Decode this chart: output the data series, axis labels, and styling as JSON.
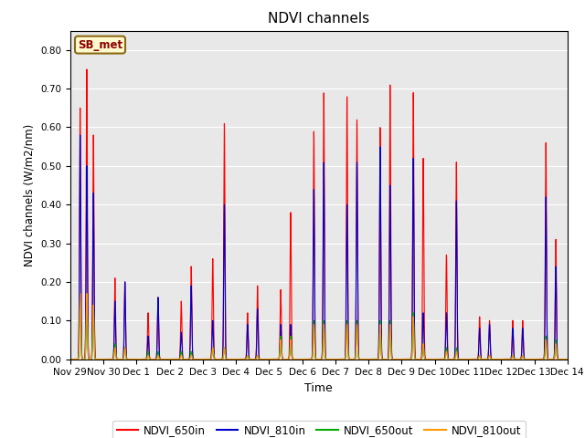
{
  "title": "NDVI channels",
  "xlabel": "Time",
  "ylabel": "NDVI channels (W/m2/nm)",
  "ylim": [
    0.0,
    0.85
  ],
  "yticks": [
    0.0,
    0.1,
    0.2,
    0.3,
    0.4,
    0.5,
    0.6,
    0.7,
    0.8
  ],
  "annotation_text": "SB_met",
  "annotation_color": "#8B0000",
  "annotation_bg": "#FFFACD",
  "annotation_border": "#8B6914",
  "colors": {
    "NDVI_650in": "#FF0000",
    "NDVI_810in": "#0000CC",
    "NDVI_650out": "#00AA00",
    "NDVI_810out": "#FF9900"
  },
  "background_color": "#E8E8E8",
  "xtick_labels": [
    "Nov 29",
    "Nov 30",
    "Dec 1",
    "Dec 2",
    "Dec 3",
    "Dec 4",
    "Dec 5",
    "Dec 6",
    "Dec 7",
    "Dec 8",
    "Dec 9",
    "Dec 10",
    "Dec 11",
    "Dec 12",
    "Dec 13",
    "Dec 14"
  ],
  "xtick_positions": [
    0,
    1,
    2,
    3,
    4,
    5,
    6,
    7,
    8,
    9,
    10,
    11,
    12,
    13,
    14,
    15
  ],
  "spike_data": [
    [
      0,
      0.3,
      0.65,
      0.58,
      0.15,
      0.17
    ],
    [
      0,
      0.5,
      0.75,
      0.5,
      0.16,
      0.17
    ],
    [
      0,
      0.7,
      0.58,
      0.43,
      0.13,
      0.14
    ],
    [
      1,
      0.35,
      0.21,
      0.15,
      0.04,
      0.03
    ],
    [
      1,
      0.65,
      0.2,
      0.2,
      0.03,
      0.03
    ],
    [
      2,
      0.35,
      0.12,
      0.06,
      0.02,
      0.01
    ],
    [
      2,
      0.65,
      0.16,
      0.16,
      0.02,
      0.01
    ],
    [
      3,
      0.35,
      0.15,
      0.07,
      0.02,
      0.01
    ],
    [
      3,
      0.65,
      0.24,
      0.19,
      0.02,
      0.01
    ],
    [
      4,
      0.3,
      0.26,
      0.1,
      0.03,
      0.03
    ],
    [
      4,
      0.65,
      0.61,
      0.4,
      0.03,
      0.03
    ],
    [
      5,
      0.35,
      0.12,
      0.09,
      0.01,
      0.01
    ],
    [
      5,
      0.65,
      0.19,
      0.13,
      0.01,
      0.01
    ],
    [
      6,
      0.35,
      0.18,
      0.09,
      0.06,
      0.05
    ],
    [
      6,
      0.65,
      0.38,
      0.09,
      0.06,
      0.05
    ],
    [
      7,
      0.35,
      0.59,
      0.44,
      0.1,
      0.09
    ],
    [
      7,
      0.65,
      0.69,
      0.51,
      0.1,
      0.09
    ],
    [
      8,
      0.35,
      0.68,
      0.4,
      0.1,
      0.09
    ],
    [
      8,
      0.65,
      0.62,
      0.51,
      0.1,
      0.09
    ],
    [
      9,
      0.35,
      0.6,
      0.55,
      0.1,
      0.09
    ],
    [
      9,
      0.65,
      0.71,
      0.45,
      0.1,
      0.09
    ],
    [
      10,
      0.35,
      0.69,
      0.52,
      0.12,
      0.11
    ],
    [
      10,
      0.65,
      0.52,
      0.12,
      0.04,
      0.04
    ],
    [
      11,
      0.35,
      0.27,
      0.12,
      0.03,
      0.02
    ],
    [
      11,
      0.65,
      0.51,
      0.41,
      0.03,
      0.02
    ],
    [
      12,
      0.35,
      0.11,
      0.08,
      0.01,
      0.01
    ],
    [
      12,
      0.65,
      0.1,
      0.09,
      0.01,
      0.01
    ],
    [
      13,
      0.35,
      0.1,
      0.08,
      0.01,
      0.01
    ],
    [
      13,
      0.65,
      0.1,
      0.08,
      0.01,
      0.01
    ],
    [
      14,
      0.35,
      0.56,
      0.42,
      0.06,
      0.05
    ],
    [
      14,
      0.65,
      0.31,
      0.24,
      0.05,
      0.04
    ]
  ]
}
